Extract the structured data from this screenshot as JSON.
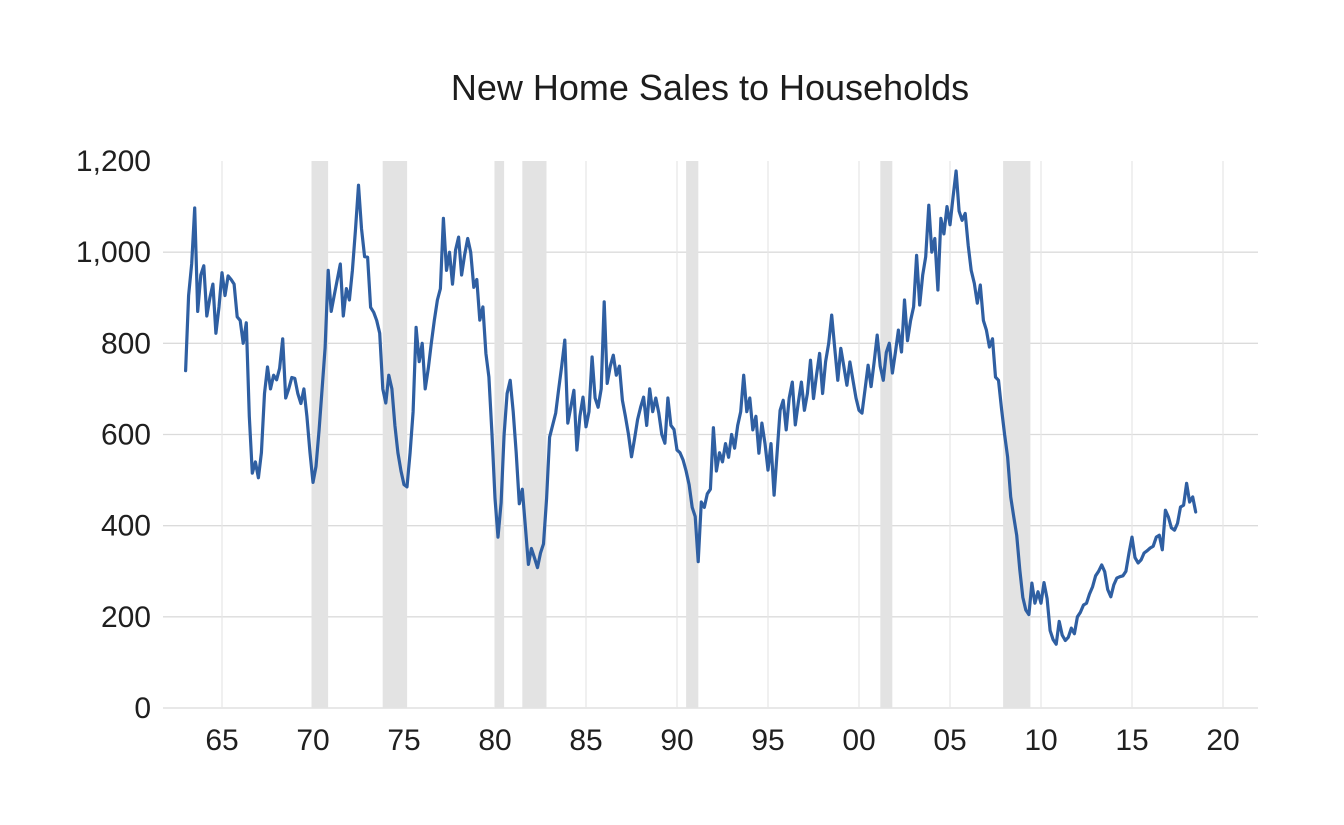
{
  "header": {
    "title": "New Home Sales to Households"
  },
  "colors": {
    "background": "#ffffff",
    "line": "#2F5FA2",
    "recession_band": "#E3E3E3",
    "gridline": "#DBDBDB",
    "gridline_vertical": "#E7E7E7",
    "text": "#1F1F1F"
  },
  "chart_data": {
    "type": "line",
    "title": "New Home Sales to Households",
    "xlabel": "",
    "ylabel": "",
    "legend": "none",
    "grid": true,
    "x_axis": {
      "tick_labels": [
        "65",
        "70",
        "75",
        "80",
        "85",
        "90",
        "95",
        "00",
        "05",
        "10",
        "15",
        "20"
      ],
      "tick_years": [
        1965,
        1970,
        1975,
        1980,
        1985,
        1990,
        1995,
        2000,
        2005,
        2010,
        2015,
        2020
      ],
      "range_years": [
        1961.8,
        2021.9
      ]
    },
    "y_axis": {
      "ticks": [
        0,
        200,
        400,
        600,
        800,
        1000,
        1200
      ],
      "tick_labels": [
        "0",
        "200",
        "400",
        "600",
        "800",
        "1,000",
        "1,200"
      ],
      "range": [
        0,
        1200
      ]
    },
    "recession_bands_years": [
      [
        1969.92,
        1970.83
      ],
      [
        1973.83,
        1975.17
      ],
      [
        1980.0,
        1980.5
      ],
      [
        1981.5,
        1982.83
      ],
      [
        1990.5,
        1991.17
      ],
      [
        2001.17,
        2001.83
      ],
      [
        2007.92,
        2009.42
      ]
    ],
    "series": [
      {
        "name": "New Home Sales to Households",
        "color": "#2F5FA2",
        "x_start_year": 1963.0,
        "x_step_years": 0.166667,
        "values": [
          740,
          905,
          975,
          1097,
          870,
          950,
          970,
          860,
          900,
          930,
          822,
          880,
          955,
          905,
          948,
          940,
          930,
          858,
          850,
          800,
          845,
          640,
          515,
          540,
          505,
          560,
          690,
          748,
          700,
          730,
          720,
          745,
          810,
          680,
          700,
          725,
          723,
          690,
          668,
          700,
          640,
          560,
          495,
          530,
          610,
          700,
          790,
          960,
          870,
          905,
          940,
          974,
          860,
          920,
          895,
          960,
          1050,
          1147,
          1052,
          990,
          989,
          879,
          868,
          850,
          822,
          700,
          669,
          730,
          700,
          620,
          560,
          520,
          490,
          485,
          560,
          650,
          835,
          760,
          800,
          700,
          745,
          800,
          850,
          895,
          920,
          1074,
          960,
          1000,
          930,
          1005,
          1033,
          950,
          995,
          1030,
          1000,
          923,
          940,
          851,
          880,
          778,
          726,
          600,
          460,
          375,
          450,
          600,
          690,
          719,
          650,
          560,
          448,
          480,
          400,
          315,
          350,
          330,
          308,
          340,
          360,
          460,
          594,
          620,
          647,
          700,
          750,
          807,
          625,
          660,
          697,
          566,
          640,
          682,
          617,
          650,
          770,
          680,
          660,
          700,
          891,
          712,
          750,
          774,
          730,
          750,
          675,
          640,
          600,
          551,
          590,
          633,
          660,
          682,
          620,
          700,
          650,
          680,
          647,
          600,
          581,
          680,
          620,
          611,
          566,
          560,
          544,
          520,
          490,
          440,
          420,
          321,
          452,
          440,
          470,
          480,
          615,
          520,
          560,
          540,
          580,
          550,
          600,
          570,
          620,
          650,
          730,
          650,
          680,
          610,
          640,
          559,
          625,
          580,
          522,
          580,
          467,
          560,
          653,
          675,
          610,
          680,
          715,
          621,
          670,
          715,
          653,
          690,
          763,
          679,
          730,
          778,
          690,
          760,
          800,
          862,
          790,
          719,
          789,
          750,
          708,
          759,
          720,
          680,
          653,
          647,
          700,
          752,
          705,
          760,
          818,
          750,
          719,
          780,
          800,
          735,
          780,
          829,
          781,
          895,
          806,
          850,
          880,
          993,
          884,
          950,
          990,
          1103,
          1000,
          1030,
          917,
          1074,
          1040,
          1100,
          1060,
          1120,
          1178,
          1090,
          1070,
          1085,
          1015,
          960,
          932,
          888,
          928,
          850,
          829,
          792,
          810,
          726,
          719,
          655,
          600,
          551,
          463,
          420,
          379,
          303,
          243,
          215,
          205,
          274,
          230,
          255,
          230,
          275,
          240,
          170,
          150,
          140,
          190,
          160,
          148,
          155,
          175,
          163,
          200,
          210,
          226,
          230,
          250,
          266,
          290,
          300,
          314,
          299,
          260,
          244,
          270,
          285,
          288,
          290,
          300,
          340,
          375,
          330,
          318,
          325,
          340,
          345,
          351,
          355,
          375,
          379,
          347,
          434,
          419,
          395,
          390,
          405,
          441,
          445,
          493,
          452,
          463,
          430
        ]
      }
    ]
  }
}
